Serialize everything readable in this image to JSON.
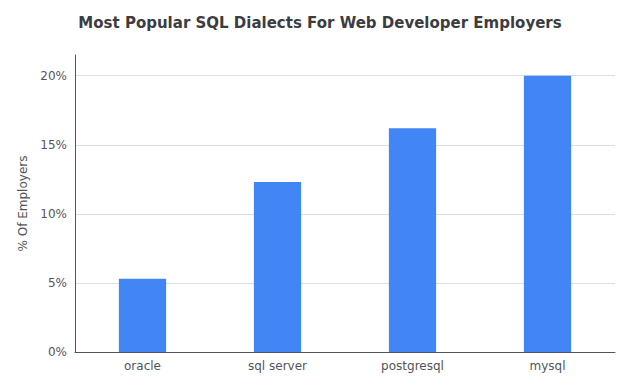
{
  "chart_data": {
    "type": "bar",
    "title": "Most Popular SQL Dialects For Web Developer Employers",
    "ylabel": "% Of Employers",
    "categories": [
      "oracle",
      "sql server",
      "postgresql",
      "mysql"
    ],
    "values": [
      5.3,
      12.3,
      16.2,
      20.0
    ],
    "color": "#4285F4",
    "ylim": [
      0,
      21.5
    ],
    "yticks": [
      {
        "value": 0,
        "label": "0%"
      },
      {
        "value": 5,
        "label": "5%"
      },
      {
        "value": 10,
        "label": "10%"
      },
      {
        "value": 15,
        "label": "15%"
      },
      {
        "value": 20,
        "label": "20%"
      }
    ],
    "grid": true
  }
}
